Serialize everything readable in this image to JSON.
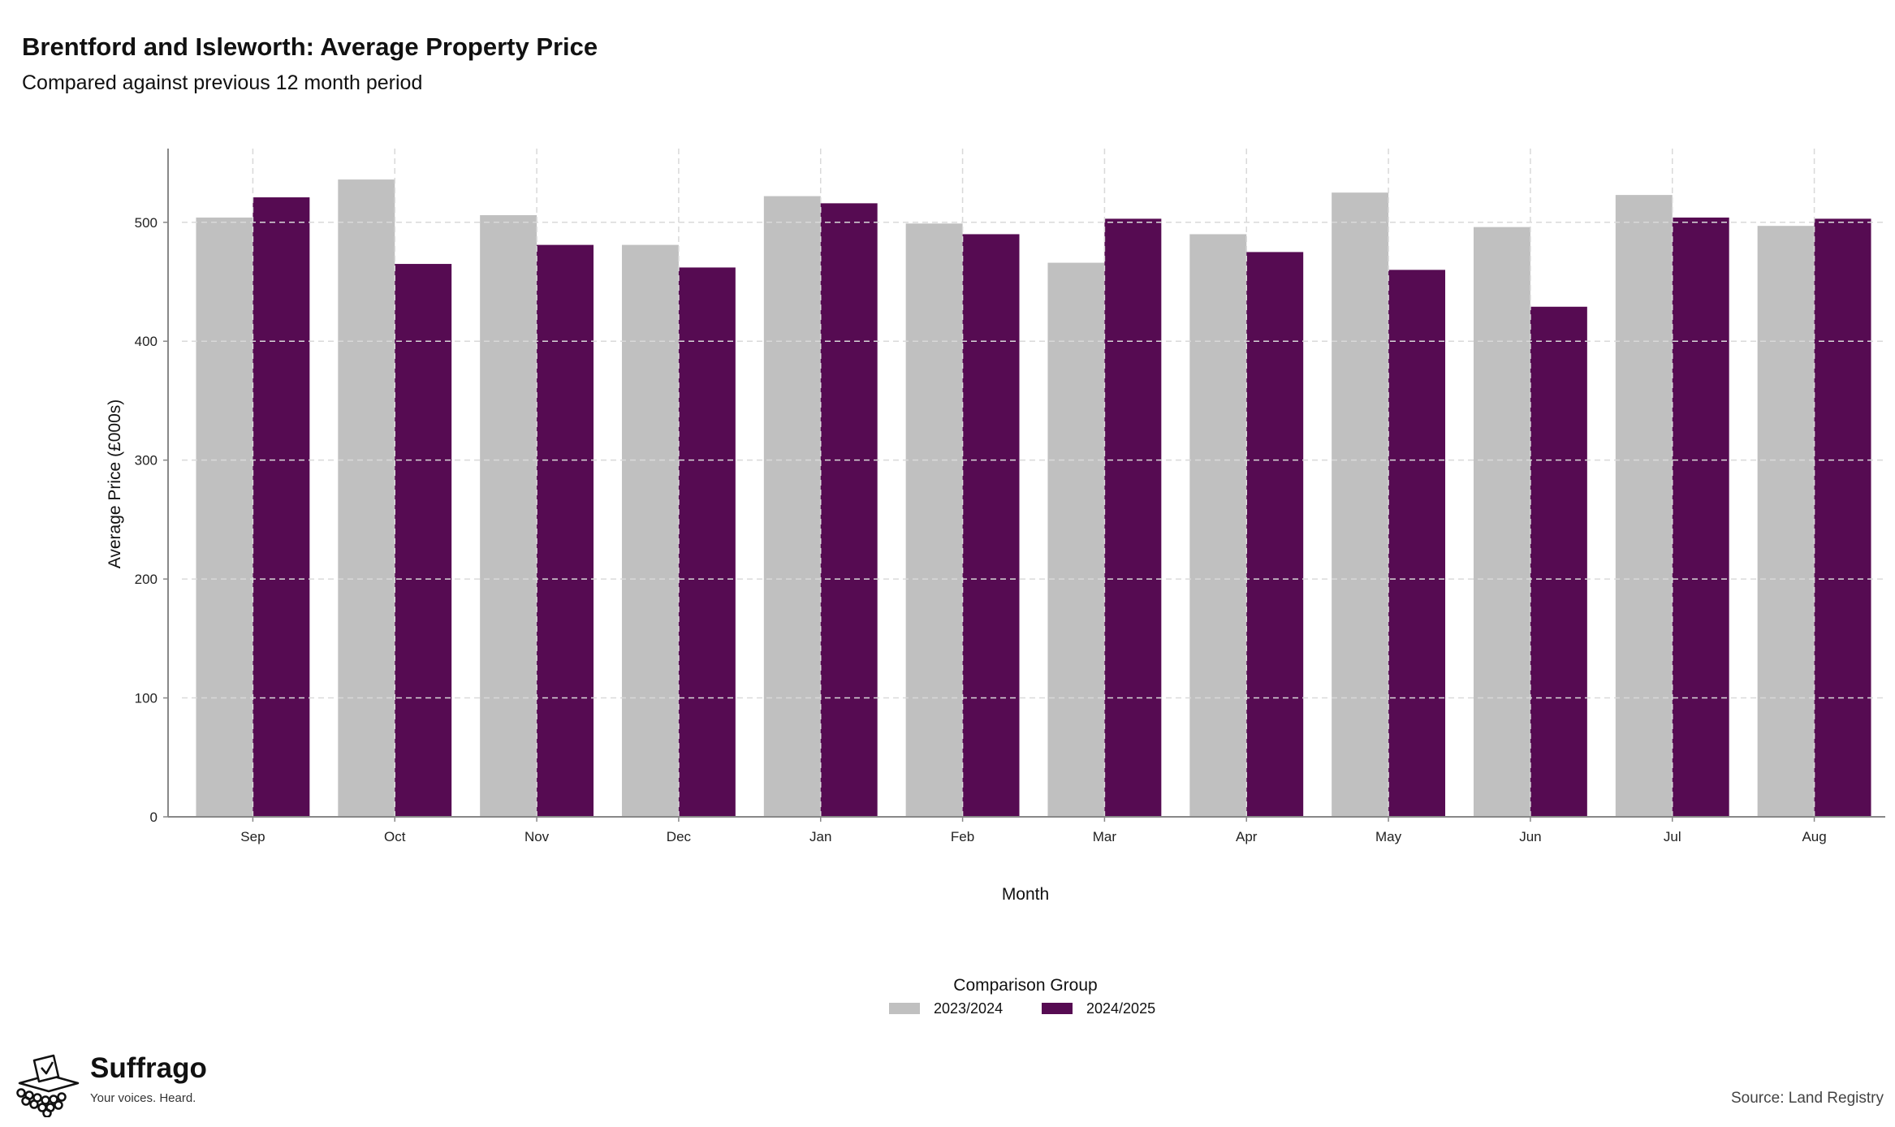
{
  "chart_data": {
    "type": "bar",
    "title": "Brentford and Isleworth: Average Property Price",
    "subtitle": "Compared against previous 12 month period",
    "xlabel": "Month",
    "ylabel": "Average Price (£000s)",
    "categories": [
      "Sep",
      "Oct",
      "Nov",
      "Dec",
      "Jan",
      "Feb",
      "Mar",
      "Apr",
      "May",
      "Jun",
      "Jul",
      "Aug"
    ],
    "series": [
      {
        "name": "2023/2024",
        "color": "#c0c0c0",
        "values": [
          504,
          536,
          506,
          481,
          522,
          499,
          466,
          490,
          525,
          496,
          523,
          497
        ]
      },
      {
        "name": "2024/2025",
        "color": "#560b52",
        "values": [
          521,
          465,
          481,
          462,
          516,
          490,
          503,
          475,
          460,
          429,
          504,
          503
        ]
      }
    ],
    "ylim": [
      0,
      562
    ],
    "yticks": [
      0,
      100,
      200,
      300,
      400,
      500
    ],
    "grid": true,
    "legend_title": "Comparison Group",
    "legend_position": "bottom"
  },
  "branding": {
    "name": "Suffrago",
    "tagline": "Your voices. Heard.",
    "logo_icon": "ballot-box-icon"
  },
  "source": "Source: Land Registry"
}
